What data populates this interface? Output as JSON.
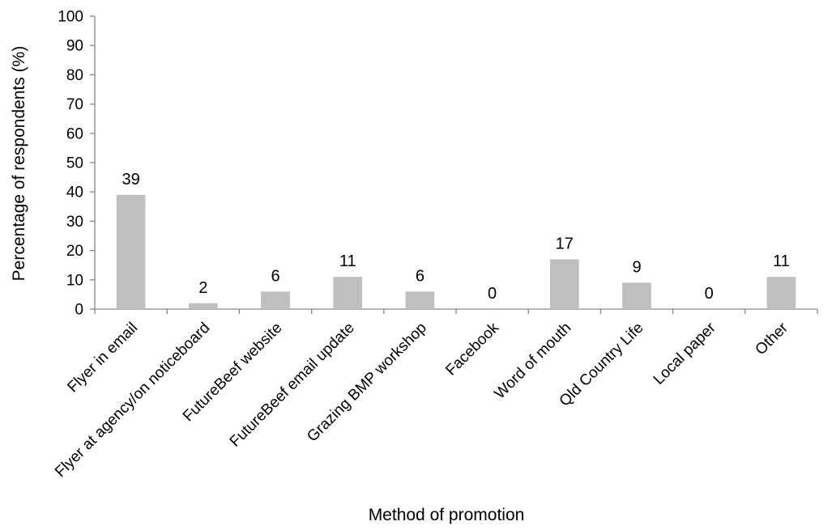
{
  "chart_data": {
    "type": "bar",
    "title": "",
    "xlabel": "Method of promotion",
    "ylabel": "Percentage of respondents (%)",
    "ylim": [
      0,
      100
    ],
    "yticks": [
      0,
      10,
      20,
      30,
      40,
      50,
      60,
      70,
      80,
      90,
      100
    ],
    "grid": false,
    "legend": "none",
    "bar_color": "#bfbfbf",
    "categories": [
      "Flyer in email",
      "Flyer at agency/on noticeboard",
      "FutureBeef website",
      "FutureBeef email update",
      "Grazing BMP workshop",
      "Facebook",
      "Word of mouth",
      "Qld Country Life",
      "Local paper",
      "Other"
    ],
    "values": [
      39,
      2,
      6,
      11,
      6,
      0,
      17,
      9,
      0,
      11
    ],
    "data_labels": [
      "39",
      "2",
      "6",
      "11",
      "6",
      "0",
      "17",
      "9",
      "0",
      "11"
    ]
  }
}
